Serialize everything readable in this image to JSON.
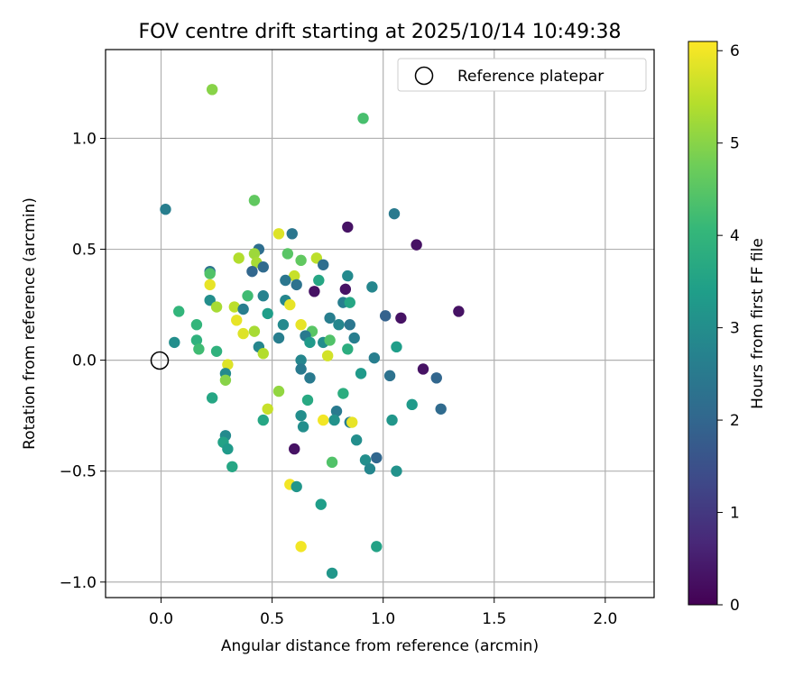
{
  "chart_data": {
    "type": "scatter",
    "title": "FOV centre drift starting at 2025/10/14 10:49:38",
    "xlabel": "Angular distance from reference (arcmin)",
    "ylabel": "Rotation from reference (arcmin)",
    "xlim": [
      -0.25,
      2.22
    ],
    "ylim": [
      -1.07,
      1.4
    ],
    "xticks": [
      0.0,
      0.5,
      1.0,
      1.5,
      2.0
    ],
    "xtick_labels": [
      "0.0",
      "0.5",
      "1.0",
      "1.5",
      "2.0"
    ],
    "yticks": [
      -1.0,
      -0.5,
      0.0,
      0.5,
      1.0
    ],
    "ytick_labels": [
      "−1.0",
      "−0.5",
      "0.0",
      "0.5",
      "1.0"
    ],
    "grid": true,
    "legend": {
      "position": "top-right",
      "entries": [
        {
          "label": "Reference platepar",
          "marker": "open-circle",
          "x": 0.0,
          "y": 0.0
        }
      ]
    },
    "colorbar": {
      "label": "Hours from first FF file",
      "range": [
        0,
        6.1
      ],
      "ticks": [
        0,
        1,
        2,
        3,
        4,
        5,
        6
      ],
      "tick_labels": [
        "0",
        "1",
        "2",
        "3",
        "4",
        "5",
        "6"
      ],
      "colormap": "viridis"
    },
    "reference_point": {
      "x": 0.0,
      "y": 0.0
    },
    "points": [
      {
        "x": 0.23,
        "y": 1.22,
        "h": 5.0
      },
      {
        "x": 0.91,
        "y": 1.09,
        "h": 4.3
      },
      {
        "x": 0.02,
        "y": 0.68,
        "h": 2.6
      },
      {
        "x": 0.42,
        "y": 0.72,
        "h": 4.6
      },
      {
        "x": 1.05,
        "y": 0.66,
        "h": 2.5
      },
      {
        "x": 0.84,
        "y": 0.6,
        "h": 0.3
      },
      {
        "x": 0.53,
        "y": 0.57,
        "h": 5.8
      },
      {
        "x": 0.59,
        "y": 0.57,
        "h": 2.4
      },
      {
        "x": 1.15,
        "y": 0.52,
        "h": 0.3
      },
      {
        "x": 0.44,
        "y": 0.5,
        "h": 2.2
      },
      {
        "x": 0.42,
        "y": 0.48,
        "h": 5.2
      },
      {
        "x": 0.57,
        "y": 0.48,
        "h": 4.5
      },
      {
        "x": 0.35,
        "y": 0.46,
        "h": 5.4
      },
      {
        "x": 0.43,
        "y": 0.44,
        "h": 5.3
      },
      {
        "x": 0.63,
        "y": 0.45,
        "h": 4.6
      },
      {
        "x": 0.7,
        "y": 0.46,
        "h": 5.5
      },
      {
        "x": 0.73,
        "y": 0.43,
        "h": 2.2
      },
      {
        "x": 0.46,
        "y": 0.42,
        "h": 2.1
      },
      {
        "x": 0.41,
        "y": 0.4,
        "h": 2.0
      },
      {
        "x": 0.22,
        "y": 0.4,
        "h": 2.3
      },
      {
        "x": 0.22,
        "y": 0.39,
        "h": 4.4
      },
      {
        "x": 0.6,
        "y": 0.38,
        "h": 5.6
      },
      {
        "x": 0.84,
        "y": 0.38,
        "h": 2.9
      },
      {
        "x": 0.56,
        "y": 0.36,
        "h": 2.4
      },
      {
        "x": 0.61,
        "y": 0.34,
        "h": 2.3
      },
      {
        "x": 0.71,
        "y": 0.36,
        "h": 3.6
      },
      {
        "x": 0.22,
        "y": 0.34,
        "h": 5.9
      },
      {
        "x": 0.95,
        "y": 0.33,
        "h": 2.8
      },
      {
        "x": 0.69,
        "y": 0.31,
        "h": 0.3
      },
      {
        "x": 0.83,
        "y": 0.32,
        "h": 0.3
      },
      {
        "x": 0.39,
        "y": 0.29,
        "h": 4.2
      },
      {
        "x": 0.46,
        "y": 0.29,
        "h": 2.7
      },
      {
        "x": 0.56,
        "y": 0.27,
        "h": 2.8
      },
      {
        "x": 0.22,
        "y": 0.27,
        "h": 3.0
      },
      {
        "x": 0.82,
        "y": 0.26,
        "h": 2.6
      },
      {
        "x": 0.85,
        "y": 0.26,
        "h": 3.6
      },
      {
        "x": 0.58,
        "y": 0.25,
        "h": 5.9
      },
      {
        "x": 0.33,
        "y": 0.24,
        "h": 5.5
      },
      {
        "x": 0.25,
        "y": 0.24,
        "h": 5.3
      },
      {
        "x": 0.37,
        "y": 0.23,
        "h": 2.6
      },
      {
        "x": 0.08,
        "y": 0.22,
        "h": 4.0
      },
      {
        "x": 0.48,
        "y": 0.21,
        "h": 3.4
      },
      {
        "x": 1.01,
        "y": 0.2,
        "h": 1.9
      },
      {
        "x": 1.08,
        "y": 0.19,
        "h": 0.3
      },
      {
        "x": 1.34,
        "y": 0.22,
        "h": 0.3
      },
      {
        "x": 0.76,
        "y": 0.19,
        "h": 2.6
      },
      {
        "x": 0.34,
        "y": 0.18,
        "h": 5.9
      },
      {
        "x": 0.16,
        "y": 0.16,
        "h": 4.0
      },
      {
        "x": 0.55,
        "y": 0.16,
        "h": 2.9
      },
      {
        "x": 0.63,
        "y": 0.16,
        "h": 5.9
      },
      {
        "x": 0.8,
        "y": 0.16,
        "h": 2.8
      },
      {
        "x": 0.85,
        "y": 0.16,
        "h": 2.4
      },
      {
        "x": 0.68,
        "y": 0.13,
        "h": 4.5
      },
      {
        "x": 0.42,
        "y": 0.13,
        "h": 5.3
      },
      {
        "x": 0.37,
        "y": 0.12,
        "h": 5.8
      },
      {
        "x": 0.65,
        "y": 0.11,
        "h": 2.5
      },
      {
        "x": 0.53,
        "y": 0.1,
        "h": 2.6
      },
      {
        "x": 0.87,
        "y": 0.1,
        "h": 2.6
      },
      {
        "x": 0.16,
        "y": 0.09,
        "h": 3.9
      },
      {
        "x": 0.67,
        "y": 0.08,
        "h": 3.3
      },
      {
        "x": 0.73,
        "y": 0.08,
        "h": 3.0
      },
      {
        "x": 0.76,
        "y": 0.09,
        "h": 4.4
      },
      {
        "x": 0.06,
        "y": 0.08,
        "h": 3.0
      },
      {
        "x": 0.44,
        "y": 0.06,
        "h": 2.8
      },
      {
        "x": 0.17,
        "y": 0.05,
        "h": 4.2
      },
      {
        "x": 0.25,
        "y": 0.04,
        "h": 3.9
      },
      {
        "x": 0.84,
        "y": 0.05,
        "h": 3.8
      },
      {
        "x": 1.06,
        "y": 0.06,
        "h": 3.4
      },
      {
        "x": 0.46,
        "y": 0.03,
        "h": 5.4
      },
      {
        "x": 0.75,
        "y": 0.02,
        "h": 5.7
      },
      {
        "x": 0.96,
        "y": 0.01,
        "h": 2.6
      },
      {
        "x": 0.3,
        "y": -0.02,
        "h": 5.8
      },
      {
        "x": 0.63,
        "y": 0.0,
        "h": 2.8
      },
      {
        "x": 0.63,
        "y": -0.04,
        "h": 2.5
      },
      {
        "x": 1.18,
        "y": -0.04,
        "h": 0.3
      },
      {
        "x": 0.29,
        "y": -0.06,
        "h": 2.9
      },
      {
        "x": 0.9,
        "y": -0.06,
        "h": 3.3
      },
      {
        "x": 1.03,
        "y": -0.07,
        "h": 2.3
      },
      {
        "x": 1.24,
        "y": -0.08,
        "h": 2.0
      },
      {
        "x": 0.67,
        "y": -0.08,
        "h": 2.5
      },
      {
        "x": 0.29,
        "y": -0.09,
        "h": 5.0
      },
      {
        "x": 0.53,
        "y": -0.14,
        "h": 5.1
      },
      {
        "x": 0.82,
        "y": -0.15,
        "h": 3.8
      },
      {
        "x": 0.23,
        "y": -0.17,
        "h": 3.6
      },
      {
        "x": 0.66,
        "y": -0.18,
        "h": 3.7
      },
      {
        "x": 1.13,
        "y": -0.2,
        "h": 3.3
      },
      {
        "x": 1.26,
        "y": -0.22,
        "h": 2.1
      },
      {
        "x": 0.48,
        "y": -0.22,
        "h": 5.6
      },
      {
        "x": 0.79,
        "y": -0.23,
        "h": 2.5
      },
      {
        "x": 0.63,
        "y": -0.25,
        "h": 3.0
      },
      {
        "x": 0.46,
        "y": -0.27,
        "h": 3.6
      },
      {
        "x": 0.78,
        "y": -0.27,
        "h": 3.1
      },
      {
        "x": 0.85,
        "y": -0.28,
        "h": 2.6
      },
      {
        "x": 0.86,
        "y": -0.28,
        "h": 5.9
      },
      {
        "x": 0.73,
        "y": -0.27,
        "h": 6.0
      },
      {
        "x": 1.04,
        "y": -0.27,
        "h": 3.2
      },
      {
        "x": 0.64,
        "y": -0.3,
        "h": 3.0
      },
      {
        "x": 0.29,
        "y": -0.34,
        "h": 2.9
      },
      {
        "x": 0.88,
        "y": -0.36,
        "h": 3.0
      },
      {
        "x": 0.28,
        "y": -0.37,
        "h": 3.5
      },
      {
        "x": 0.3,
        "y": -0.4,
        "h": 3.3
      },
      {
        "x": 0.6,
        "y": -0.4,
        "h": 0.3
      },
      {
        "x": 0.92,
        "y": -0.45,
        "h": 3.0
      },
      {
        "x": 0.97,
        "y": -0.44,
        "h": 2.0
      },
      {
        "x": 0.77,
        "y": -0.46,
        "h": 4.4
      },
      {
        "x": 0.32,
        "y": -0.48,
        "h": 3.6
      },
      {
        "x": 0.94,
        "y": -0.49,
        "h": 2.8
      },
      {
        "x": 1.06,
        "y": -0.5,
        "h": 3.1
      },
      {
        "x": 0.58,
        "y": -0.56,
        "h": 6.0
      },
      {
        "x": 0.61,
        "y": -0.57,
        "h": 3.2
      },
      {
        "x": 0.72,
        "y": -0.65,
        "h": 3.4
      },
      {
        "x": 0.63,
        "y": -0.84,
        "h": 6.0
      },
      {
        "x": 0.97,
        "y": -0.84,
        "h": 3.5
      },
      {
        "x": 0.77,
        "y": -0.96,
        "h": 3.2
      }
    ]
  }
}
